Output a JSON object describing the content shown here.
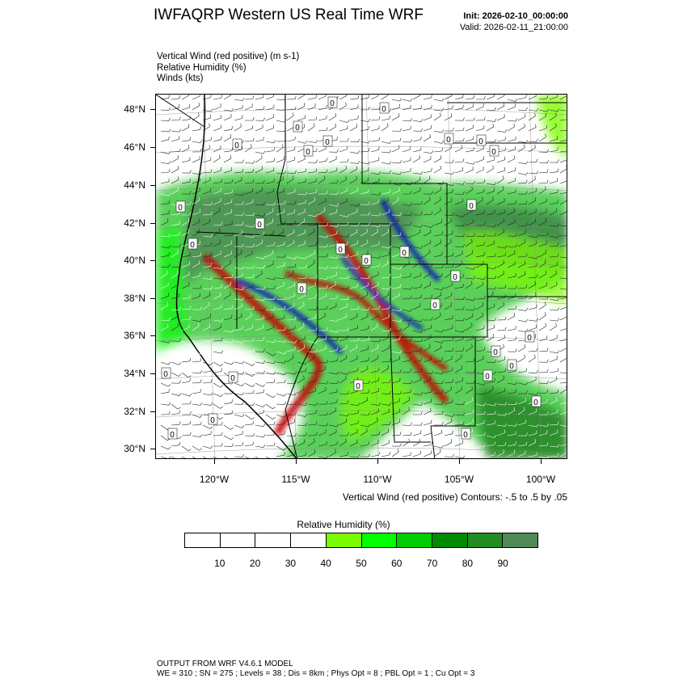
{
  "header": {
    "title": "IWFAQRP Western US Real Time WRF",
    "init": "Init: 2026-02-10_00:00:00",
    "valid": "Valid: 2026-02-11_21:00:00"
  },
  "fields": {
    "line1": "Vertical Wind (red positive)   (m s-1)",
    "line2": "Relative Humidity   (%)",
    "line3": "Winds   (kts)"
  },
  "map": {
    "lat_labels": [
      "48°N",
      "46°N",
      "44°N",
      "42°N",
      "40°N",
      "38°N",
      "36°N",
      "34°N",
      "32°N",
      "30°N"
    ],
    "lon_labels": [
      "120°W",
      "115°W",
      "110°W",
      "105°W",
      "100°W"
    ],
    "contour_note": "Vertical Wind (red positive) Contours: -.5 to .5 by .05",
    "zero_label": "0"
  },
  "colorbar": {
    "title": "Relative Humidity   (%)",
    "ticks": [
      "10",
      "20",
      "30",
      "40",
      "50",
      "60",
      "70",
      "80",
      "90"
    ],
    "colors": [
      "#ffffff",
      "#ffffff",
      "#ffffff",
      "#ffffff",
      "#7cfc00",
      "#00ff00",
      "#00cd00",
      "#008b00",
      "#228b22",
      "#4e8a55"
    ]
  },
  "footer": {
    "line1": "OUTPUT FROM WRF V4.6.1 MODEL",
    "line2": "WE = 310 ; SN = 275 ; Levels = 38 ; Dis = 8km ; Phys Opt = 8 ; PBL Opt = 1 ; Cu Opt = 3"
  }
}
